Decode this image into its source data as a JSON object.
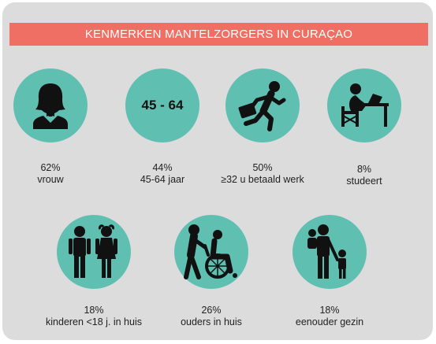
{
  "title": "KENMERKEN MANTELZORGERS IN CURAÇAO",
  "colors": {
    "banner": "#ef6f65",
    "circle": "#5fc0b2",
    "background": "#dcdcdc"
  },
  "items": [
    {
      "icon": "woman-icon",
      "percent": "62%",
      "label": "vrouw"
    },
    {
      "icon": "age-label",
      "icon_text": "45 - 64",
      "percent": "44%",
      "label": "45-64 jaar"
    },
    {
      "icon": "running-worker-icon",
      "percent": "50%",
      "label": "≥32 u betaald werk"
    },
    {
      "icon": "studying-person-icon",
      "percent": "8%",
      "label": "studeert"
    },
    {
      "icon": "children-icon",
      "percent": "18%",
      "label": "kinderen <18 j. in huis"
    },
    {
      "icon": "wheelchair-caregiver-icon",
      "percent": "26%",
      "label": "ouders in huis"
    },
    {
      "icon": "single-parent-icon",
      "percent": "18%",
      "label": "eenouder gezin"
    }
  ]
}
